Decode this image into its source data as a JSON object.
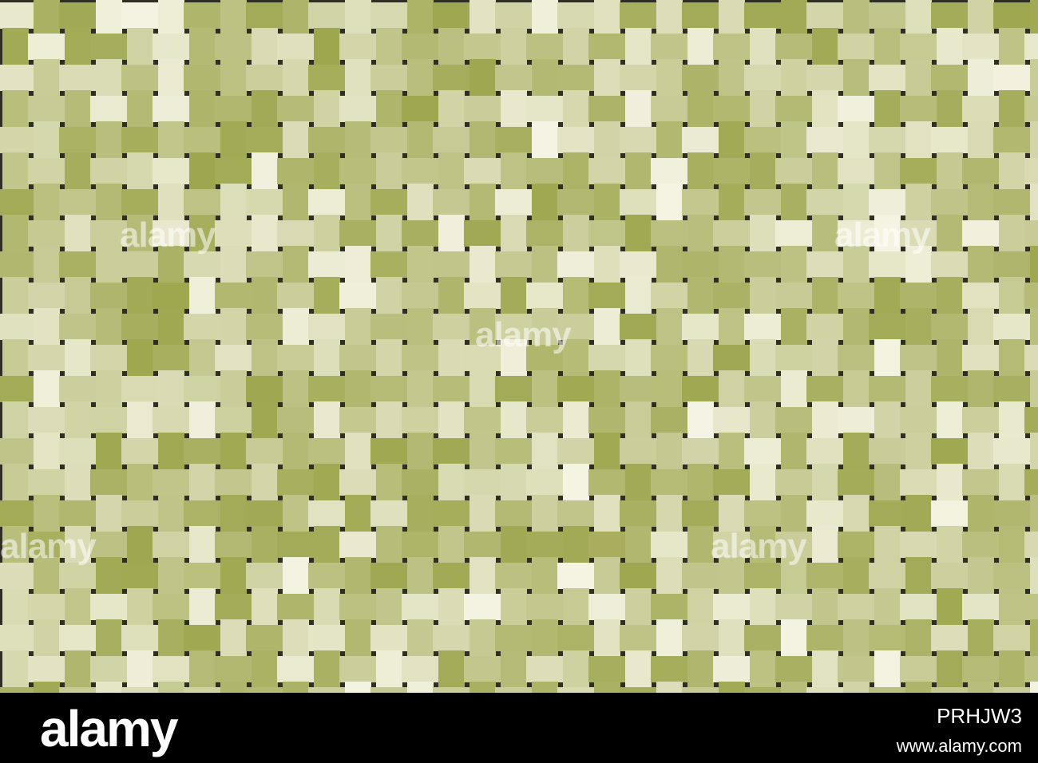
{
  "image": {
    "watermarks": [
      "alamy",
      "alamy",
      "alamy",
      "alamy",
      "alamy"
    ]
  },
  "footer": {
    "logo": "alamy",
    "image_id": "PRHJW3",
    "url": "www.alamy.com"
  }
}
